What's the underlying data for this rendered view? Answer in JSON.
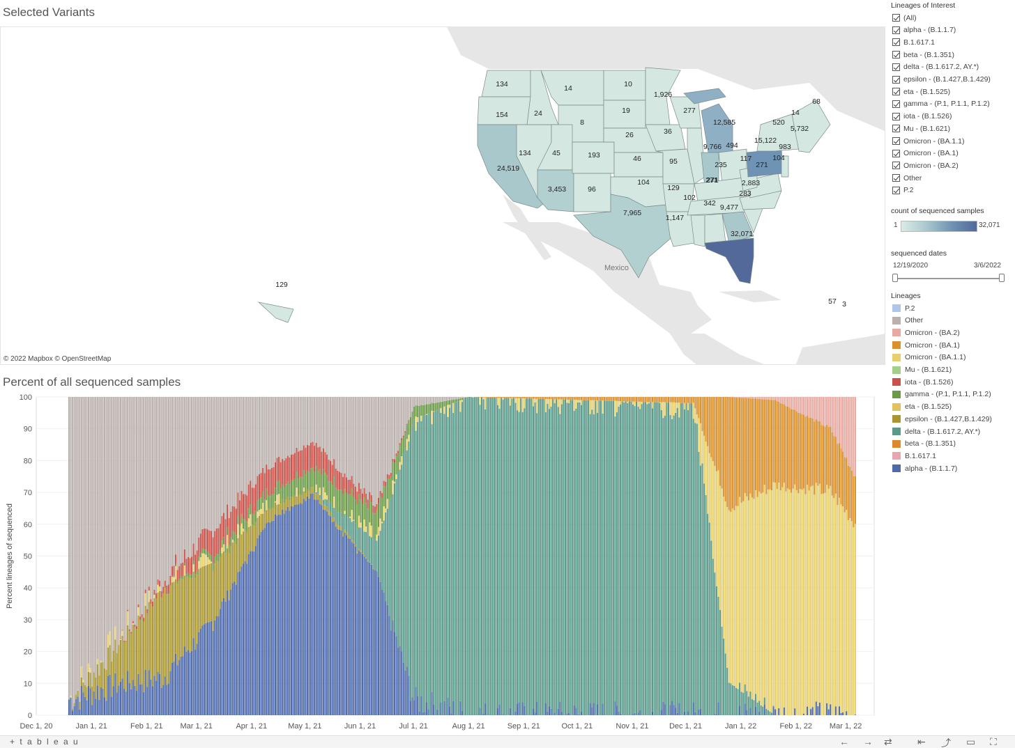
{
  "map": {
    "title": "Selected Variants",
    "attribution": "© 2022 Mapbox  © OpenStreetMap",
    "country_label": "Mexico",
    "state_values": [
      {
        "state": "WA",
        "label": "134"
      },
      {
        "state": "OR",
        "label": "154"
      },
      {
        "state": "ID",
        "label": "24"
      },
      {
        "state": "MT",
        "label": "14"
      },
      {
        "state": "ND",
        "label": "10"
      },
      {
        "state": "MN",
        "label": "1,926"
      },
      {
        "state": "WY",
        "label": "8"
      },
      {
        "state": "SD",
        "label": "19"
      },
      {
        "state": "NE",
        "label": "26"
      },
      {
        "state": "IA",
        "label": "36"
      },
      {
        "state": "WI",
        "label": "277"
      },
      {
        "state": "MI",
        "label": "12,585"
      },
      {
        "state": "NV",
        "label": "134"
      },
      {
        "state": "UT",
        "label": "45"
      },
      {
        "state": "CO",
        "label": "193"
      },
      {
        "state": "KS",
        "label": "46"
      },
      {
        "state": "MO",
        "label": "95"
      },
      {
        "state": "IL",
        "label": "9,766"
      },
      {
        "state": "IN",
        "label": "494"
      },
      {
        "state": "OH",
        "label": "235"
      },
      {
        "state": "PA",
        "label": "15,122"
      },
      {
        "state": "NY",
        "label": "520"
      },
      {
        "state": "VT",
        "label": "14"
      },
      {
        "state": "ME",
        "label": "68"
      },
      {
        "state": "MA",
        "label": "5,732"
      },
      {
        "state": "NJ",
        "label": "983"
      },
      {
        "state": "MD",
        "label": "104"
      },
      {
        "state": "WV",
        "label": "117"
      },
      {
        "state": "VA",
        "label": "271"
      },
      {
        "state": "KY",
        "label": "271"
      },
      {
        "state": "NC",
        "label": "2,883"
      },
      {
        "state": "CA",
        "label": "24,519"
      },
      {
        "state": "AZ",
        "label": "3,453"
      },
      {
        "state": "NM",
        "label": "96"
      },
      {
        "state": "OK",
        "label": "104"
      },
      {
        "state": "AR",
        "label": "129"
      },
      {
        "state": "TN",
        "label": "271"
      },
      {
        "state": "SC",
        "label": "283"
      },
      {
        "state": "MS",
        "label": "102"
      },
      {
        "state": "AL",
        "label": "342"
      },
      {
        "state": "GA",
        "label": "9,477"
      },
      {
        "state": "TX",
        "label": "7,965"
      },
      {
        "state": "LA",
        "label": "1,147"
      },
      {
        "state": "FL",
        "label": "32,071"
      },
      {
        "state": "HI",
        "label": "129"
      },
      {
        "state": "PR",
        "label": "57"
      },
      {
        "state": "VI",
        "label": "3"
      }
    ]
  },
  "filters": {
    "title": "Lineages of Interest",
    "items": [
      "(All)",
      "alpha - (B.1.1.7)",
      "B.1.617.1",
      "beta - (B.1.351)",
      "delta - (B.1.617.2, AY.*)",
      "epsilon - (B.1.427,B.1.429)",
      "eta - (B.1.525)",
      "gamma - (P.1, P.1.1, P.1.2)",
      "iota - (B.1.526)",
      "Mu - (B.1.621)",
      "Omicron - (BA.1.1)",
      "Omicron - (BA.1)",
      "Omicron - (BA.2)",
      "Other",
      "P.2"
    ]
  },
  "color_legend": {
    "title": "count of sequenced samples",
    "min": "1",
    "max": "32,071"
  },
  "date_filter": {
    "title": "sequenced dates",
    "start": "12/19/2020",
    "end": "3/6/2022"
  },
  "lineage_legend": {
    "title": "Lineages",
    "items": [
      {
        "label": "P.2",
        "color": "#aec7e8"
      },
      {
        "label": "Other",
        "color": "#bab0ac"
      },
      {
        "label": "Omicron - (BA.2)",
        "color": "#e8a9a0"
      },
      {
        "label": "Omicron - (BA.1)",
        "color": "#d9902f"
      },
      {
        "label": "Omicron - (BA.1.1)",
        "color": "#e6cf6e"
      },
      {
        "label": "Mu - (B.1.621)",
        "color": "#a3cf8a"
      },
      {
        "label": "iota - (B.1.526)",
        "color": "#c9524a"
      },
      {
        "label": "gamma - (P.1, P.1.1, P.1.2)",
        "color": "#6a9a48"
      },
      {
        "label": "eta - (B.1.525)",
        "color": "#e0c35a"
      },
      {
        "label": "epsilon - (B.1.427,B.1.429)",
        "color": "#a89632"
      },
      {
        "label": "delta - (B.1.617.2, AY.*)",
        "color": "#5b9a8b"
      },
      {
        "label": "beta - (B.1.351)",
        "color": "#dd8a2f"
      },
      {
        "label": "B.1.617.1",
        "color": "#e7a6b0"
      },
      {
        "label": "alpha - (B.1.1.7)",
        "color": "#4e6aab"
      }
    ]
  },
  "chart_data": {
    "type": "bar",
    "title": "Percent of all sequenced samples",
    "ylabel": "Percent lineages of sequenced",
    "xlabel": "",
    "ylim": [
      0,
      100
    ],
    "y_ticks": [
      "0",
      "10",
      "20",
      "30",
      "40",
      "50",
      "60",
      "70",
      "80",
      "90",
      "100"
    ],
    "x_ticks": [
      "Dec 1, 20",
      "Jan 1, 21",
      "Feb 1, 21",
      "Mar 1, 21",
      "Apr 1, 21",
      "May 1, 21",
      "Jun 1, 21",
      "Jul 1, 21",
      "Aug 1, 21",
      "Sep 1, 21",
      "Oct 1, 21",
      "Nov 1, 21",
      "Dec 1, 21",
      "Jan 1, 22",
      "Feb 1, 22",
      "Mar 1, 22"
    ],
    "stacked": true,
    "x_range": [
      "2020-12-19",
      "2022-03-06"
    ],
    "series_keyframes": [
      {
        "date": "2020-12-20",
        "alpha": 5,
        "epsilon": 0,
        "iota": 0,
        "gamma": 0,
        "delta": 0,
        "omicron_ba11": 0,
        "omicron_ba1": 0,
        "omicron_ba2": 0,
        "other": 95
      },
      {
        "date": "2021-01-15",
        "alpha": 10,
        "epsilon": 12,
        "iota": 0,
        "gamma": 0,
        "delta": 0,
        "omicron_ba11": 0,
        "omicron_ba1": 0,
        "omicron_ba2": 0,
        "other": 78
      },
      {
        "date": "2021-02-10",
        "alpha": 12,
        "epsilon": 28,
        "iota": 2,
        "gamma": 0,
        "delta": 0,
        "omicron_ba11": 0,
        "omicron_ba1": 0,
        "omicron_ba2": 0,
        "other": 58
      },
      {
        "date": "2021-03-10",
        "alpha": 30,
        "epsilon": 18,
        "iota": 8,
        "gamma": 2,
        "delta": 0,
        "omicron_ba11": 0,
        "omicron_ba1": 0,
        "omicron_ba2": 0,
        "other": 42
      },
      {
        "date": "2021-04-10",
        "alpha": 62,
        "epsilon": 4,
        "iota": 8,
        "gamma": 4,
        "delta": 0,
        "omicron_ba11": 0,
        "omicron_ba1": 0,
        "omicron_ba2": 0,
        "other": 22
      },
      {
        "date": "2021-05-05",
        "alpha": 70,
        "epsilon": 2,
        "iota": 8,
        "gamma": 6,
        "delta": 0,
        "omicron_ba11": 0,
        "omicron_ba1": 0,
        "omicron_ba2": 0,
        "other": 14
      },
      {
        "date": "2021-06-10",
        "alpha": 45,
        "epsilon": 0,
        "iota": 2,
        "gamma": 8,
        "delta": 10,
        "omicron_ba11": 0,
        "omicron_ba1": 0,
        "omicron_ba2": 0,
        "other": 35
      },
      {
        "date": "2021-07-01",
        "alpha": 5,
        "epsilon": 0,
        "iota": 0,
        "gamma": 4,
        "delta": 88,
        "omicron_ba11": 0,
        "omicron_ba1": 0,
        "omicron_ba2": 0,
        "other": 3
      },
      {
        "date": "2021-08-01",
        "alpha": 0,
        "epsilon": 0,
        "iota": 0,
        "gamma": 0,
        "delta": 100,
        "omicron_ba11": 0,
        "omicron_ba1": 0,
        "omicron_ba2": 0,
        "other": 0
      },
      {
        "date": "2021-12-05",
        "alpha": 0,
        "epsilon": 0,
        "iota": 0,
        "gamma": 0,
        "delta": 97,
        "omicron_ba11": 1,
        "omicron_ba1": 2,
        "omicron_ba2": 0,
        "other": 0
      },
      {
        "date": "2021-12-25",
        "alpha": 0,
        "epsilon": 0,
        "iota": 0,
        "gamma": 0,
        "delta": 10,
        "omicron_ba11": 55,
        "omicron_ba1": 35,
        "omicron_ba2": 0,
        "other": 0
      },
      {
        "date": "2022-01-20",
        "alpha": 0,
        "epsilon": 0,
        "iota": 0,
        "gamma": 0,
        "delta": 0,
        "omicron_ba11": 72,
        "omicron_ba1": 27,
        "omicron_ba2": 1,
        "other": 0
      },
      {
        "date": "2022-02-20",
        "alpha": 0,
        "epsilon": 0,
        "iota": 0,
        "gamma": 0,
        "delta": 0,
        "omicron_ba11": 70,
        "omicron_ba1": 20,
        "omicron_ba2": 10,
        "other": 0
      },
      {
        "date": "2022-03-06",
        "alpha": 0,
        "epsilon": 0,
        "iota": 0,
        "gamma": 0,
        "delta": 0,
        "omicron_ba11": 60,
        "omicron_ba1": 15,
        "omicron_ba2": 25,
        "other": 0
      }
    ]
  },
  "footer": {
    "brand": "+ t a b l e a u"
  }
}
